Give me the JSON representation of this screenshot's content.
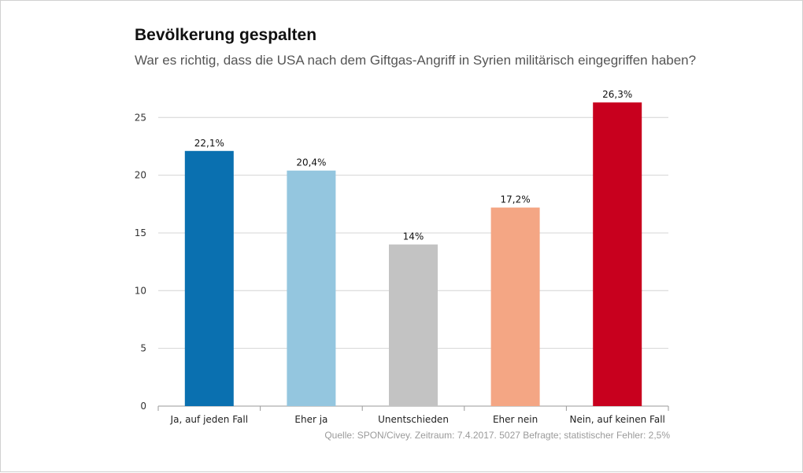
{
  "chart_data": {
    "type": "bar",
    "title": "Bevölkerung gespalten",
    "subtitle": "War es richtig, dass die USA nach dem Giftgas-Angriff in Syrien militärisch eingegriffen haben?",
    "categories": [
      "Ja, auf jeden Fall",
      "Eher ja",
      "Unentschieden",
      "Eher nein",
      "Nein, auf keinen Fall"
    ],
    "values": [
      22.1,
      20.4,
      14,
      17.2,
      26.3
    ],
    "data_labels": [
      "22,1%",
      "20,4%",
      "14%",
      "17,2%",
      "26,3%"
    ],
    "colors": [
      "#0a70b0",
      "#94c6df",
      "#c3c3c3",
      "#f4a684",
      "#c8001e"
    ],
    "xlabel": "",
    "ylabel": "",
    "ylim": [
      0,
      27
    ],
    "yticks": [
      0,
      5,
      10,
      15,
      20,
      25
    ],
    "grid": true,
    "legend": "none"
  },
  "source": "Quelle: SPON/Civey. Zeitraum: 7.4.2017. 5027 Befragte; statistischer Fehler: 2,5%"
}
